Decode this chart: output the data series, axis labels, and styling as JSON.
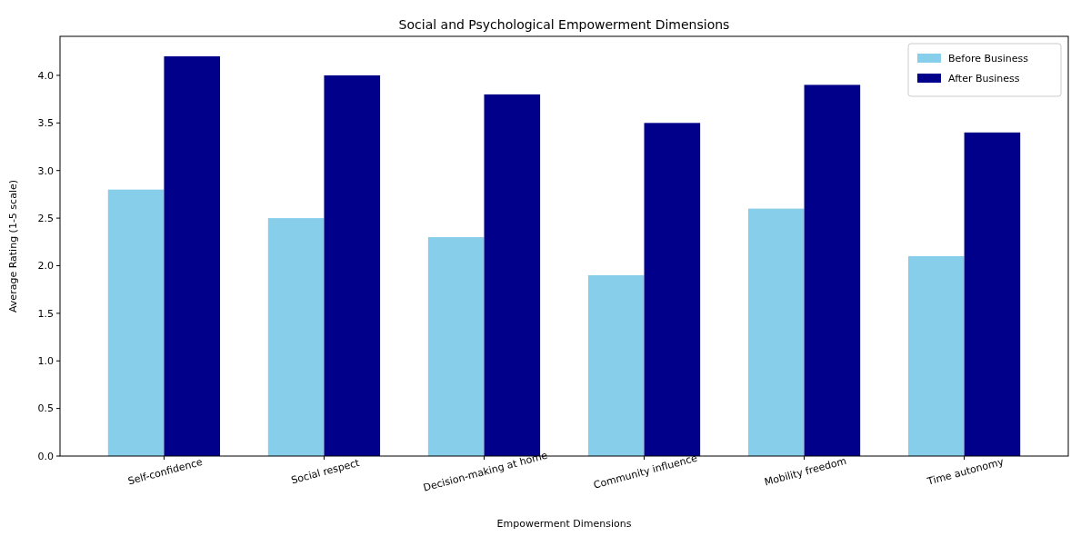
{
  "chart_data": {
    "type": "bar",
    "title": "Social and Psychological Empowerment Dimensions",
    "xlabel": "Empowerment Dimensions",
    "ylabel": "Average Rating (1-5 scale)",
    "categories": [
      "Self-confidence",
      "Social respect",
      "Decision-making at home",
      "Community influence",
      "Mobility freedom",
      "Time autonomy"
    ],
    "series": [
      {
        "name": "Before Business",
        "color": "#87ceeb",
        "values": [
          2.8,
          2.5,
          2.3,
          1.9,
          2.6,
          2.1
        ]
      },
      {
        "name": "After Business",
        "color": "#00008b",
        "values": [
          4.2,
          4.0,
          3.8,
          3.5,
          3.9,
          3.4
        ]
      }
    ],
    "ylim": [
      0,
      4.41
    ],
    "yticks": [
      {
        "value": 0,
        "label": "0.0"
      },
      {
        "value": 0.5,
        "label": "0.5"
      },
      {
        "value": 1,
        "label": "1.0"
      },
      {
        "value": 1.5,
        "label": "1.5"
      },
      {
        "value": 2,
        "label": "2.0"
      },
      {
        "value": 2.5,
        "label": "2.5"
      },
      {
        "value": 3,
        "label": "3.0"
      },
      {
        "value": 3.5,
        "label": "3.5"
      },
      {
        "value": 4,
        "label": "4.0"
      }
    ],
    "grid": false,
    "legend": "top right"
  }
}
